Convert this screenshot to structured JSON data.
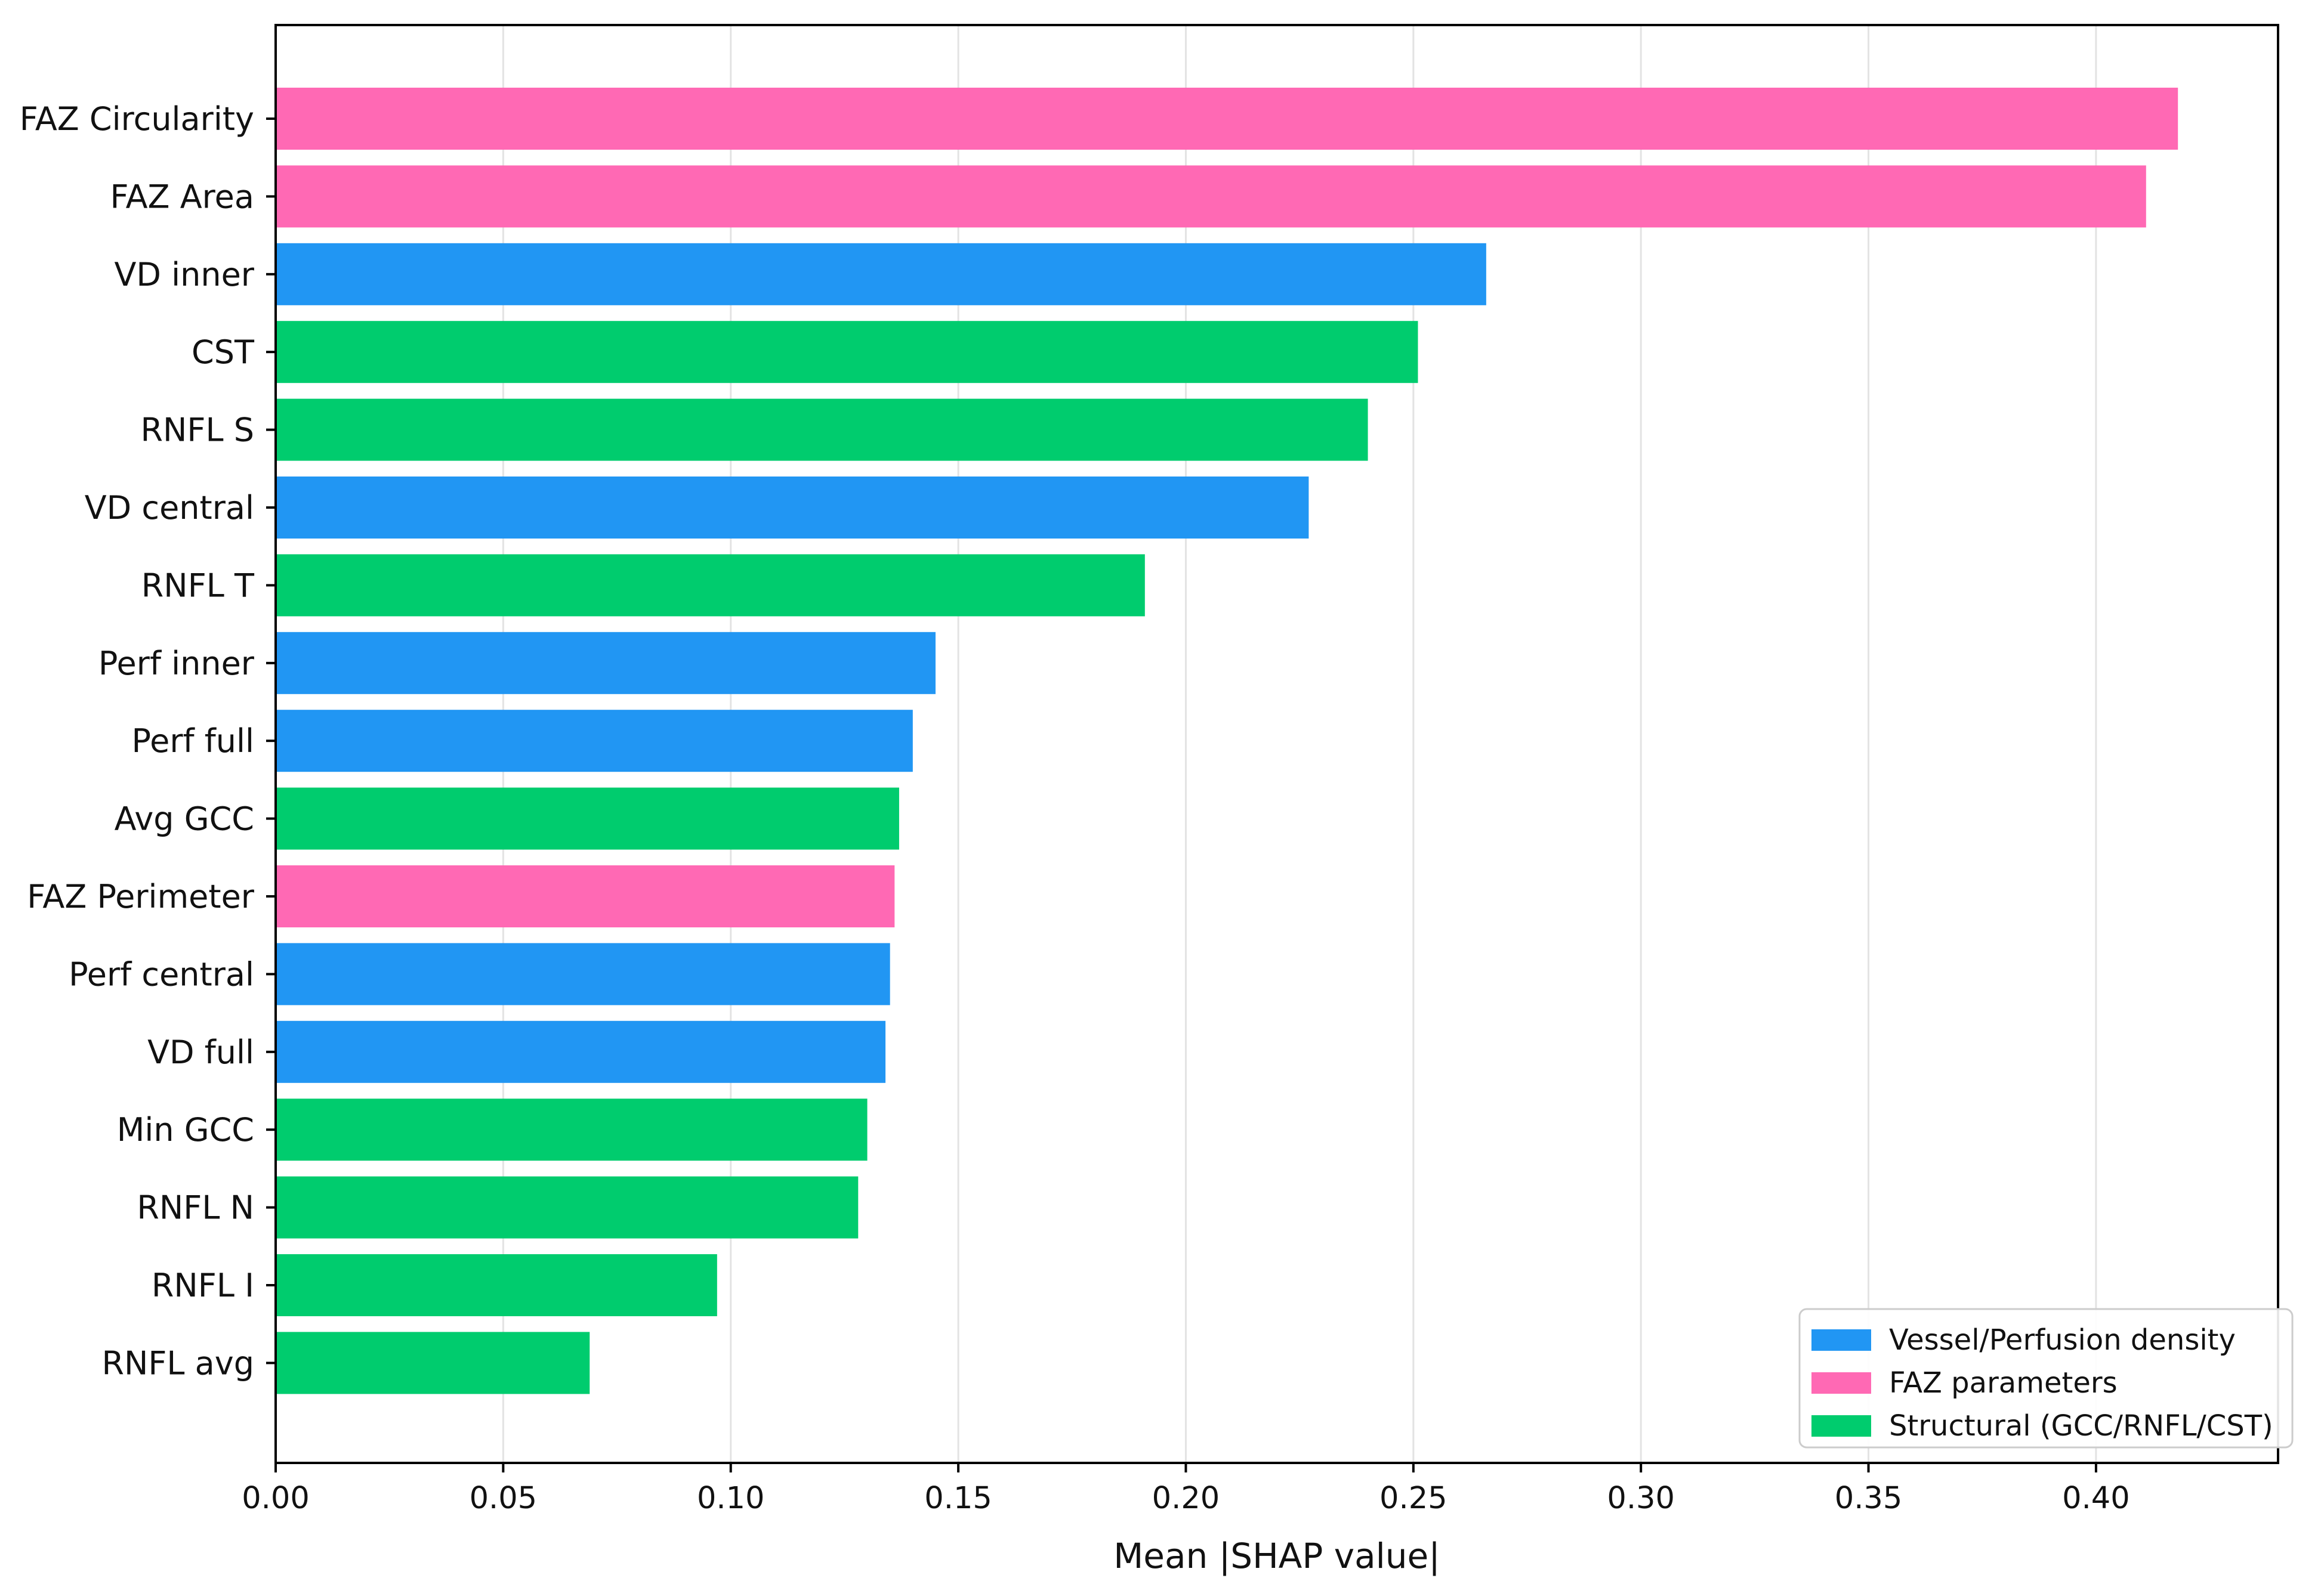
{
  "chart_data": {
    "type": "bar",
    "orientation": "horizontal",
    "title": "",
    "xlabel": "Mean |SHAP value|",
    "ylabel": "",
    "xlim": [
      0,
      0.44
    ],
    "x_ticks": [
      "0.00",
      "0.05",
      "0.10",
      "0.15",
      "0.20",
      "0.25",
      "0.30",
      "0.35",
      "0.40"
    ],
    "grid": "vertical",
    "legend_position": "bottom-right",
    "groups": [
      {
        "label": "Vessel/Perfusion density",
        "color": "#2196F3"
      },
      {
        "label": "FAZ parameters",
        "color": "#FF69B4"
      },
      {
        "label": "Structural (GCC/RNFL/CST)",
        "color": "#00CC6E"
      }
    ],
    "bars": [
      {
        "label": "FAZ Circularity",
        "value": 0.418,
        "group": 1
      },
      {
        "label": "FAZ Area",
        "value": 0.411,
        "group": 1
      },
      {
        "label": "VD inner",
        "value": 0.266,
        "group": 0
      },
      {
        "label": "CST",
        "value": 0.251,
        "group": 2
      },
      {
        "label": "RNFL S",
        "value": 0.24,
        "group": 2
      },
      {
        "label": "VD central",
        "value": 0.227,
        "group": 0
      },
      {
        "label": "RNFL T",
        "value": 0.191,
        "group": 2
      },
      {
        "label": "Perf inner",
        "value": 0.145,
        "group": 0
      },
      {
        "label": "Perf full",
        "value": 0.14,
        "group": 0
      },
      {
        "label": "Avg GCC",
        "value": 0.137,
        "group": 2
      },
      {
        "label": "FAZ Perimeter",
        "value": 0.136,
        "group": 1
      },
      {
        "label": "Perf central",
        "value": 0.135,
        "group": 0
      },
      {
        "label": "VD full",
        "value": 0.134,
        "group": 0
      },
      {
        "label": "Min GCC",
        "value": 0.13,
        "group": 2
      },
      {
        "label": "RNFL N",
        "value": 0.128,
        "group": 2
      },
      {
        "label": "RNFL I",
        "value": 0.097,
        "group": 2
      },
      {
        "label": "RNFL avg",
        "value": 0.069,
        "group": 2
      }
    ]
  }
}
